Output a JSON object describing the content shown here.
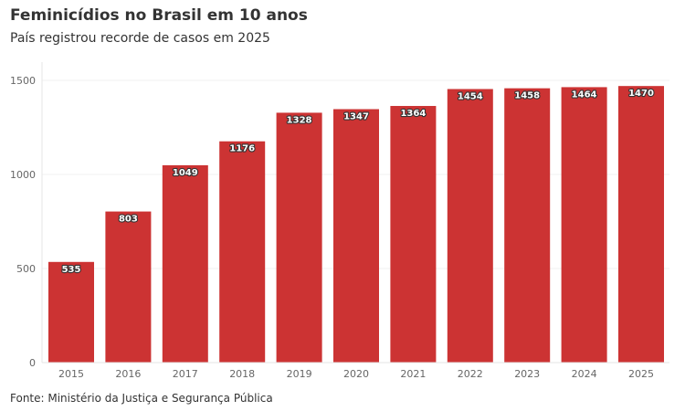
{
  "header": {
    "title": "Feminicídios no Brasil em 10 anos",
    "subtitle": "País registrou recorde de casos em 2025"
  },
  "footer": {
    "source": "Fonte: Ministério da Justiça e Segurança Pública"
  },
  "colors": {
    "bar": "#cc3333",
    "grid": "#f0f0f0",
    "axis": "#e6e6e6"
  },
  "chart_data": {
    "type": "bar",
    "categories": [
      "2015",
      "2016",
      "2017",
      "2018",
      "2019",
      "2020",
      "2021",
      "2022",
      "2023",
      "2024",
      "2025"
    ],
    "values": [
      535,
      803,
      1049,
      1176,
      1328,
      1347,
      1364,
      1454,
      1458,
      1464,
      1470
    ],
    "ylim": [
      0,
      1500
    ],
    "yticks": [
      0,
      500,
      1000,
      1500
    ],
    "grid": true,
    "data_labels": true,
    "xlabel": "",
    "ylabel": ""
  }
}
